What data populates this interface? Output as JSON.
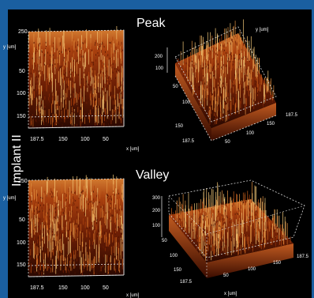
{
  "side_label": "Implant II",
  "panels": {
    "peak": {
      "label": "Peak",
      "left": {
        "y_axis": {
          "ticks": [
            "250",
            "50",
            "100",
            "150"
          ],
          "label": "y [um]"
        },
        "x_axis": {
          "ticks": [
            "187.5",
            "150",
            "100",
            "50"
          ],
          "label": "x [um]"
        }
      },
      "right": {
        "z_ticks": [
          "200",
          "100"
        ],
        "y_label": "y [um]",
        "x_ticks": [
          "187.5",
          "150",
          "100",
          "50"
        ],
        "y_ticks": [
          "50",
          "100",
          "150",
          "187.5"
        ]
      }
    },
    "valley": {
      "label": "Valley",
      "left": {
        "y_axis": {
          "ticks": [
            "250",
            "50",
            "100",
            "150"
          ],
          "label": "y [um]"
        },
        "x_axis": {
          "ticks": [
            "187.5",
            "150",
            "100",
            "50"
          ],
          "label": "x [um]"
        }
      },
      "right": {
        "z_ticks": [
          "300",
          "200",
          "100"
        ],
        "x_ticks": [
          "187.5",
          "150",
          "100",
          "50"
        ],
        "y_ticks": [
          "50",
          "100",
          "150",
          "187.5"
        ],
        "x_label": "x [um]"
      }
    }
  },
  "colors": {
    "frame_border": "#1a5fa0",
    "background": "#000000",
    "surface_dark": "#3a0c00",
    "surface_mid": "#8a2a08",
    "surface_bright": "#e8a050",
    "surface_peak": "#fff4c0",
    "axis_lines": "#d8d8d8",
    "text": "#ffffff"
  }
}
